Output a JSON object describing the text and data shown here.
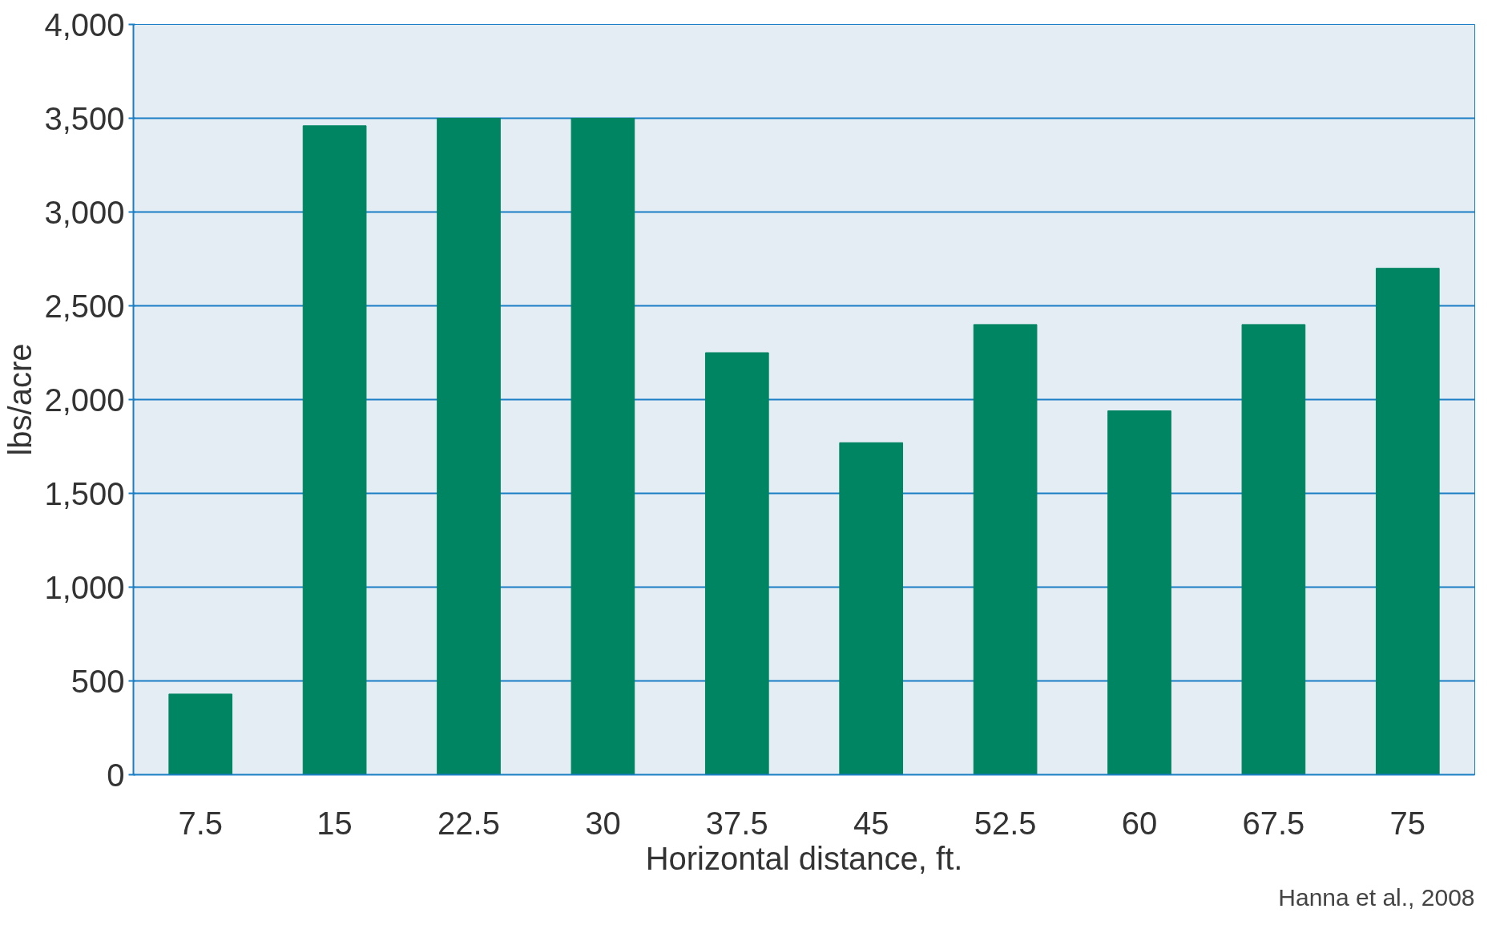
{
  "chart_data": {
    "type": "bar",
    "xlabel": "Horizontal distance, ft.",
    "ylabel": "lbs/acre",
    "categories": [
      "7.5",
      "15",
      "22.5",
      "30",
      "37.5",
      "45",
      "52.5",
      "60",
      "67.5",
      "75"
    ],
    "values": [
      430,
      3460,
      3500,
      3500,
      2250,
      1770,
      2400,
      1940,
      2400,
      2700
    ],
    "color": "#008562",
    "ylim": [
      0,
      4000
    ],
    "yticks": [
      {
        "value": 0,
        "label": "0"
      },
      {
        "value": 500,
        "label": "500"
      },
      {
        "value": 1000,
        "label": "1,000"
      },
      {
        "value": 1500,
        "label": "1,500"
      },
      {
        "value": 2000,
        "label": "2,000"
      },
      {
        "value": 2500,
        "label": "2,500"
      },
      {
        "value": 3000,
        "label": "3,000"
      },
      {
        "value": 3500,
        "label": "3,500"
      },
      {
        "value": 4000,
        "label": "4,000"
      }
    ],
    "grid": "y",
    "annotations": [
      "Hanna et al., 2008"
    ]
  }
}
